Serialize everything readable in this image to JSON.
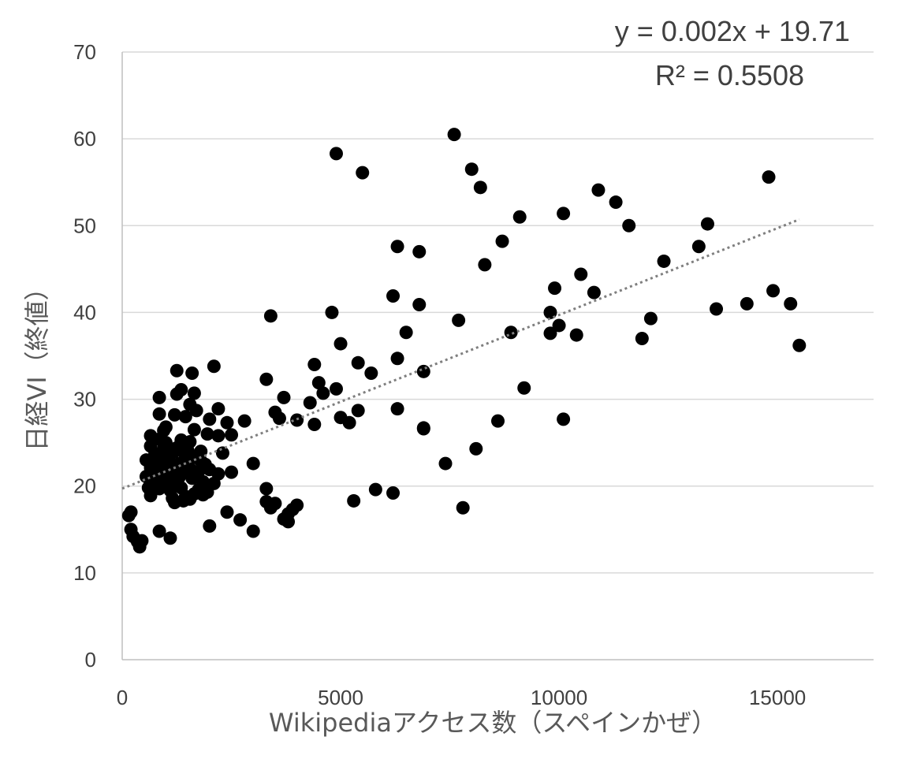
{
  "chart_data": {
    "type": "scatter",
    "title": "",
    "xlabel": "Wikipediaアクセス数（スペインかぜ）",
    "ylabel": "日経VI（終値）",
    "xlim": [
      0,
      17200
    ],
    "ylim": [
      0,
      70
    ],
    "x_ticks": [
      "0",
      "5000",
      "10000",
      "15000"
    ],
    "x_tick_values": [
      0,
      5000,
      10000,
      15000
    ],
    "y_ticks": [
      "0",
      "10",
      "20",
      "30",
      "40",
      "50",
      "60",
      "70"
    ],
    "y_tick_values": [
      0,
      10,
      20,
      30,
      40,
      50,
      60,
      70
    ],
    "grid": "horizontal",
    "marker_color": "#000000",
    "gridline_color": "#d9d9d9",
    "trendline_color": "#7f7f7f",
    "trendline": {
      "type": "linear",
      "slope": 0.002,
      "intercept": 19.71,
      "x_range": [
        0,
        15500
      ],
      "equation": "y = 0.002x + 19.71",
      "r_squared": "R² = 0.5508"
    },
    "points": [
      [
        4900,
        58.3
      ],
      [
        5500,
        56.1
      ],
      [
        7600,
        60.5
      ],
      [
        8000,
        56.5
      ],
      [
        8200,
        54.4
      ],
      [
        6300,
        47.6
      ],
      [
        6800,
        47.0
      ],
      [
        8300,
        45.5
      ],
      [
        8700,
        48.2
      ],
      [
        9100,
        51.0
      ],
      [
        10100,
        51.4
      ],
      [
        10900,
        54.1
      ],
      [
        11300,
        52.7
      ],
      [
        11600,
        50.0
      ],
      [
        14800,
        55.6
      ],
      [
        13400,
        50.2
      ],
      [
        13200,
        47.6
      ],
      [
        12400,
        45.9
      ],
      [
        10500,
        44.4
      ],
      [
        10800,
        42.3
      ],
      [
        9900,
        42.8
      ],
      [
        6200,
        41.9
      ],
      [
        6800,
        40.9
      ],
      [
        7700,
        39.1
      ],
      [
        3400,
        39.6
      ],
      [
        4800,
        40.0
      ],
      [
        9800,
        40.0
      ],
      [
        10000,
        38.5
      ],
      [
        9800,
        37.6
      ],
      [
        10400,
        37.4
      ],
      [
        12100,
        39.3
      ],
      [
        11900,
        37.0
      ],
      [
        13600,
        40.4
      ],
      [
        14300,
        41.0
      ],
      [
        14900,
        42.5
      ],
      [
        15300,
        41.0
      ],
      [
        15500,
        36.2
      ],
      [
        8900,
        37.7
      ],
      [
        6500,
        37.7
      ],
      [
        5000,
        36.4
      ],
      [
        6300,
        34.7
      ],
      [
        5400,
        34.2
      ],
      [
        5700,
        33.0
      ],
      [
        6900,
        33.2
      ],
      [
        4400,
        34.0
      ],
      [
        3300,
        32.3
      ],
      [
        4500,
        31.9
      ],
      [
        4600,
        30.7
      ],
      [
        4900,
        31.2
      ],
      [
        9200,
        31.3
      ],
      [
        3700,
        30.2
      ],
      [
        4300,
        29.6
      ],
      [
        6300,
        28.9
      ],
      [
        5400,
        28.7
      ],
      [
        3500,
        28.5
      ],
      [
        3600,
        27.8
      ],
      [
        4000,
        27.6
      ],
      [
        4400,
        27.1
      ],
      [
        5000,
        27.9
      ],
      [
        5200,
        27.3
      ],
      [
        6900,
        26.7
      ],
      [
        6900,
        26.6
      ],
      [
        8600,
        27.5
      ],
      [
        10100,
        27.7
      ],
      [
        7400,
        22.6
      ],
      [
        8100,
        24.3
      ],
      [
        7800,
        17.5
      ],
      [
        5800,
        19.6
      ],
      [
        6200,
        19.2
      ],
      [
        5300,
        18.3
      ],
      [
        3000,
        22.6
      ],
      [
        3300,
        19.7
      ],
      [
        3300,
        18.2
      ],
      [
        3400,
        17.5
      ],
      [
        3500,
        18.0
      ],
      [
        3700,
        16.2
      ],
      [
        3800,
        15.9
      ],
      [
        3800,
        16.8
      ],
      [
        3900,
        17.3
      ],
      [
        4000,
        17.8
      ],
      [
        2500,
        21.6
      ],
      [
        2200,
        21.4
      ],
      [
        2400,
        17.0
      ],
      [
        2700,
        16.1
      ],
      [
        3000,
        14.8
      ],
      [
        2000,
        15.4
      ],
      [
        1100,
        14.0
      ],
      [
        850,
        14.8
      ],
      [
        200,
        17.0
      ],
      [
        150,
        16.6
      ],
      [
        200,
        15.0
      ],
      [
        250,
        14.2
      ],
      [
        350,
        13.6
      ],
      [
        400,
        13.0
      ],
      [
        450,
        13.7
      ],
      [
        2200,
        28.9
      ],
      [
        2000,
        27.7
      ],
      [
        2400,
        27.3
      ],
      [
        2800,
        27.5
      ],
      [
        2500,
        25.9
      ],
      [
        2200,
        25.8
      ],
      [
        2300,
        23.8
      ],
      [
        2100,
        33.8
      ],
      [
        1600,
        33.0
      ],
      [
        1250,
        33.3
      ],
      [
        1250,
        30.6
      ],
      [
        1350,
        31.1
      ],
      [
        1650,
        30.7
      ],
      [
        850,
        30.2
      ],
      [
        1550,
        29.4
      ],
      [
        1700,
        28.7
      ],
      [
        1200,
        28.2
      ],
      [
        850,
        28.3
      ],
      [
        1450,
        28.0
      ],
      [
        1000,
        26.8
      ],
      [
        950,
        26.4
      ],
      [
        1650,
        26.5
      ],
      [
        1950,
        26.0
      ],
      [
        650,
        25.8
      ],
      [
        850,
        25.4
      ],
      [
        1350,
        25.3
      ],
      [
        1550,
        25.1
      ],
      [
        650,
        24.6
      ],
      [
        950,
        24.3
      ],
      [
        1250,
        24.4
      ],
      [
        1800,
        24.0
      ],
      [
        750,
        23.7
      ],
      [
        1050,
        23.5
      ],
      [
        1450,
        23.5
      ],
      [
        1700,
        23.3
      ],
      [
        550,
        23.0
      ],
      [
        800,
        22.8
      ],
      [
        1100,
        22.7
      ],
      [
        1300,
        22.6
      ],
      [
        1500,
        22.8
      ],
      [
        1900,
        22.5
      ],
      [
        650,
        22.1
      ],
      [
        900,
        21.8
      ],
      [
        1150,
        21.6
      ],
      [
        1400,
        21.5
      ],
      [
        1750,
        21.7
      ],
      [
        2000,
        21.9
      ],
      [
        550,
        21.1
      ],
      [
        750,
        20.8
      ],
      [
        1000,
        20.7
      ],
      [
        1250,
        20.6
      ],
      [
        1600,
        20.9
      ],
      [
        1850,
        20.5
      ],
      [
        600,
        19.8
      ],
      [
        850,
        19.7
      ],
      [
        1100,
        19.5
      ],
      [
        1350,
        19.8
      ],
      [
        1750,
        19.6
      ],
      [
        650,
        18.9
      ],
      [
        1150,
        18.6
      ],
      [
        1450,
        18.8
      ],
      [
        1850,
        19.0
      ],
      [
        1200,
        18.1
      ],
      [
        1400,
        18.3
      ],
      [
        1650,
        19.1
      ],
      [
        1950,
        19.3
      ],
      [
        800,
        21.3
      ],
      [
        1050,
        22.2
      ],
      [
        1300,
        21.0
      ],
      [
        1550,
        22.0
      ],
      [
        1200,
        24.0
      ],
      [
        1000,
        25.0
      ],
      [
        900,
        23.2
      ],
      [
        700,
        22.4
      ],
      [
        1500,
        24.1
      ],
      [
        1800,
        22.9
      ],
      [
        2100,
        20.3
      ],
      [
        700,
        20.2
      ],
      [
        1550,
        18.5
      ]
    ]
  }
}
